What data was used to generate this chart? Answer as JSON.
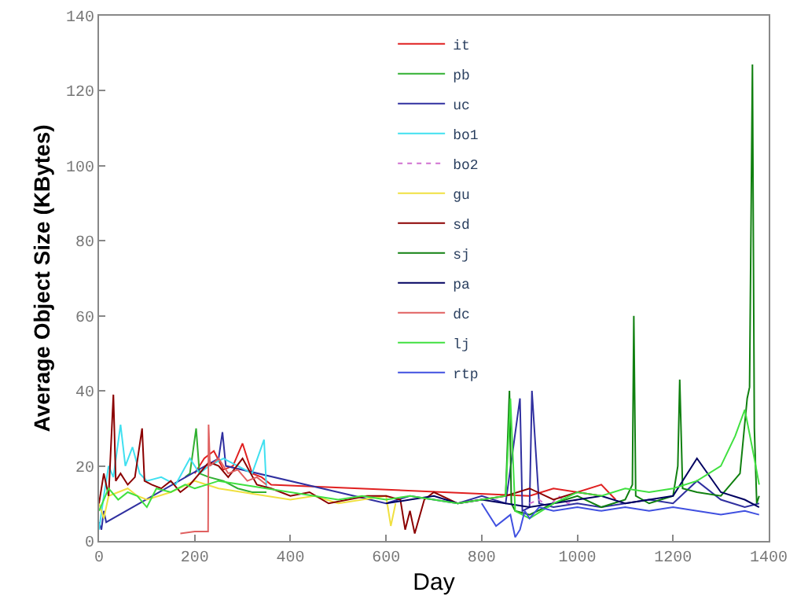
{
  "chart_data": {
    "type": "line",
    "xlabel": "Day",
    "ylabel": "Average Object Size (KBytes)",
    "xlim": [
      0,
      1400
    ],
    "xticks": [
      0,
      200,
      400,
      600,
      800,
      1000,
      1200,
      1400
    ],
    "ylim": [
      0,
      140
    ],
    "yticks": [
      0,
      20,
      40,
      60,
      80,
      100,
      120,
      140
    ],
    "legend": "top right",
    "marker": "none",
    "line_style": "solid",
    "series": [
      {
        "name": "it",
        "color": "#e02020",
        "x": [
          200,
          220,
          240,
          260,
          280,
          300,
          320,
          340,
          360,
          900,
          950,
          1000,
          1050,
          1080
        ],
        "values": [
          18,
          22,
          24,
          19,
          20,
          26,
          18,
          17,
          15,
          12,
          14,
          13,
          15,
          11
        ]
      },
      {
        "name": "pb",
        "color": "#30b030",
        "x": [
          180,
          190,
          203,
          210,
          230,
          260,
          290,
          320,
          350
        ],
        "values": [
          17,
          18,
          30,
          18,
          17,
          16,
          14,
          13,
          13
        ]
      },
      {
        "name": "uc",
        "color": "#3030a0",
        "x": [
          0,
          5,
          10,
          15,
          250,
          258,
          265,
          600,
          650,
          700,
          750,
          800,
          850,
          880,
          885,
          900,
          905,
          920,
          950,
          1000,
          1050,
          1100,
          1150,
          1200,
          1250,
          1300,
          1350,
          1380
        ],
        "values": [
          5,
          3,
          8,
          5,
          22,
          29,
          20,
          10,
          12,
          11,
          10,
          12,
          10,
          38,
          8,
          9,
          40,
          10,
          9,
          10,
          9,
          10,
          11,
          10,
          16,
          11,
          9,
          10
        ]
      },
      {
        "name": "bo1",
        "color": "#40e0f0",
        "x": [
          0,
          10,
          20,
          30,
          45,
          55,
          70,
          85,
          100,
          130,
          160,
          190,
          210,
          230,
          260,
          290,
          320,
          345,
          350
        ],
        "values": [
          3,
          12,
          20,
          17,
          31,
          20,
          25,
          18,
          16,
          17,
          15,
          22,
          18,
          20,
          22,
          20,
          18,
          27,
          14
        ]
      },
      {
        "name": "bo2",
        "color": "#d070d0",
        "line_style": "dotted",
        "x": [
          900,
          920,
          940,
          960,
          980,
          1000
        ],
        "values": [
          10,
          11,
          9,
          12,
          10,
          11
        ]
      },
      {
        "name": "gu",
        "color": "#f0e040",
        "x": [
          0,
          10,
          20,
          40,
          60,
          80,
          100,
          150,
          200,
          250,
          300,
          350,
          400,
          450,
          500,
          550,
          600,
          610,
          620
        ],
        "values": [
          10,
          6,
          12,
          13,
          14,
          12,
          11,
          13,
          16,
          14,
          13,
          12,
          11,
          12,
          10,
          11,
          12,
          4,
          10
        ]
      },
      {
        "name": "sd",
        "color": "#8b0000",
        "x": [
          0,
          5,
          10,
          20,
          30,
          35,
          45,
          60,
          75,
          90,
          95,
          110,
          130,
          150,
          170,
          190,
          210,
          230,
          250,
          270,
          300,
          330,
          360,
          400,
          440,
          480,
          520,
          560,
          600,
          630,
          640,
          650,
          660,
          680,
          700,
          750,
          800,
          850,
          900,
          950,
          1000,
          1050
        ],
        "values": [
          10,
          14,
          18,
          12,
          39,
          16,
          18,
          15,
          17,
          30,
          16,
          15,
          14,
          16,
          13,
          15,
          18,
          21,
          20,
          17,
          22,
          15,
          14,
          12,
          13,
          10,
          11,
          12,
          12,
          11,
          3,
          8,
          2,
          11,
          13,
          10,
          11,
          12,
          14,
          11,
          13,
          12
        ]
      },
      {
        "name": "sj",
        "color": "#108010",
        "x": [
          850,
          858,
          862,
          870,
          900,
          950,
          1000,
          1050,
          1100,
          1115,
          1118,
          1122,
          1150,
          1200,
          1210,
          1214,
          1220,
          1250,
          1300,
          1340,
          1355,
          1360,
          1366,
          1370,
          1375,
          1380
        ],
        "values": [
          12,
          40,
          10,
          8,
          7,
          10,
          12,
          9,
          11,
          15,
          60,
          12,
          10,
          12,
          20,
          43,
          14,
          13,
          12,
          18,
          38,
          41,
          127,
          30,
          10,
          12
        ]
      },
      {
        "name": "pa",
        "color": "#000060",
        "x": [
          600,
          650,
          700,
          750,
          800,
          850,
          900,
          950,
          1000,
          1050,
          1100,
          1150,
          1200,
          1250,
          1300,
          1350,
          1380
        ],
        "values": [
          10,
          11,
          12,
          10,
          11,
          10,
          9,
          10,
          11,
          12,
          10,
          11,
          12,
          22,
          13,
          11,
          9
        ]
      },
      {
        "name": "dc",
        "color": "#e06060",
        "x": [
          170,
          200,
          228,
          229,
          232,
          250,
          270,
          290,
          310,
          330,
          350
        ],
        "values": [
          2,
          2.5,
          2.5,
          31,
          20,
          22,
          18,
          19,
          16,
          17,
          15
        ]
      },
      {
        "name": "lj",
        "color": "#40e040",
        "x": [
          0,
          20,
          40,
          60,
          80,
          100,
          120,
          150,
          180,
          200,
          250,
          300,
          350,
          400,
          450,
          500,
          550,
          600,
          650,
          700,
          750,
          800,
          850,
          860,
          870,
          900,
          950,
          1000,
          1050,
          1100,
          1150,
          1200,
          1250,
          1300,
          1330,
          1350,
          1370,
          1380
        ],
        "values": [
          8,
          14,
          11,
          13,
          12,
          9,
          14,
          13,
          15,
          14,
          16,
          15,
          14,
          13,
          12,
          11,
          12,
          11,
          12,
          11,
          10,
          11,
          12,
          38,
          8,
          6,
          10,
          13,
          12,
          14,
          13,
          14,
          16,
          20,
          28,
          35,
          22,
          15
        ]
      },
      {
        "name": "rtp",
        "color": "#4050e0",
        "x": [
          800,
          830,
          860,
          870,
          880,
          890,
          900,
          920,
          950,
          1000,
          1050,
          1100,
          1150,
          1200,
          1250,
          1300,
          1350,
          1380
        ],
        "values": [
          10,
          4,
          7,
          1,
          3,
          8,
          6,
          9,
          8,
          9,
          8,
          9,
          8,
          9,
          8,
          7,
          8,
          7
        ]
      }
    ]
  }
}
